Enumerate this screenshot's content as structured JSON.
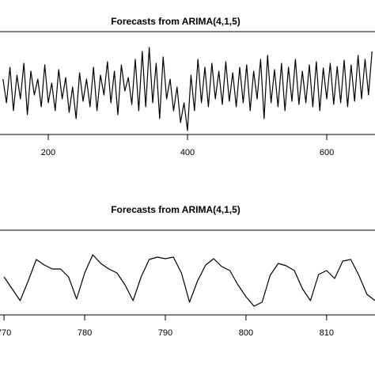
{
  "chart_data": [
    {
      "type": "line",
      "title": "Forecasts from ARIMA(4,1,5)",
      "x": [
        135,
        140,
        145,
        150,
        155,
        160,
        165,
        170,
        175,
        180,
        185,
        190,
        195,
        200,
        205,
        210,
        215,
        220,
        225,
        230,
        235,
        240,
        245,
        250,
        255,
        260,
        265,
        270,
        275,
        280,
        285,
        290,
        295,
        300,
        305,
        310,
        315,
        320,
        325,
        330,
        335,
        340,
        345,
        350,
        355,
        360,
        365,
        370,
        375,
        380,
        385,
        390,
        395,
        400,
        405,
        410,
        415,
        420,
        425,
        430,
        435,
        440,
        445,
        450,
        455,
        460,
        465,
        470,
        475,
        480,
        485,
        490,
        495,
        500,
        505,
        510,
        515,
        520,
        525,
        530,
        535,
        540,
        545,
        550,
        555,
        560,
        565,
        570,
        575,
        580,
        585,
        590,
        595,
        600,
        605,
        610,
        615,
        620,
        625,
        630,
        635,
        640,
        645,
        650,
        655,
        660,
        665
      ],
      "series": [
        {
          "color": "#000000",
          "values": [
            70,
            40,
            85,
            30,
            75,
            45,
            90,
            25,
            80,
            50,
            70,
            35,
            88,
            40,
            65,
            30,
            82,
            45,
            72,
            28,
            60,
            20,
            78,
            42,
            70,
            35,
            85,
            30,
            75,
            50,
            92,
            40,
            80,
            25,
            88,
            55,
            72,
            38,
            95,
            30,
            105,
            35,
            110,
            40,
            90,
            20,
            98,
            45,
            70,
            30,
            60,
            15,
            40,
            5,
            75,
            30,
            95,
            40,
            85,
            35,
            90,
            45,
            80,
            38,
            92,
            42,
            78,
            35,
            85,
            40,
            88,
            30,
            80,
            45,
            95,
            20,
            100,
            40,
            82,
            35,
            90,
            30,
            85,
            42,
            95,
            38,
            80,
            40,
            88,
            35,
            92,
            30,
            84,
            45,
            90,
            38,
            86,
            40,
            94,
            35,
            88,
            42,
            100,
            45,
            95,
            50,
            105
          ]
        }
      ],
      "xlim": [
        130.7,
        669.3
      ],
      "ylim": [
        0,
        130
      ],
      "xticks": [
        200,
        400,
        600
      ]
    },
    {
      "type": "line",
      "title": "Forecasts from ARIMA(4,1,5)",
      "x": [
        770,
        771,
        772,
        773,
        774,
        775,
        776,
        777,
        778,
        779,
        780,
        781,
        782,
        783,
        784,
        785,
        786,
        787,
        788,
        789,
        790,
        791,
        792,
        793,
        794,
        795,
        796,
        797,
        798,
        799,
        800,
        801,
        802,
        803,
        804,
        805,
        806,
        807,
        808,
        809,
        810,
        811,
        812,
        813,
        814,
        815,
        816
      ],
      "series": [
        {
          "color": "#000000",
          "values": [
            48,
            33,
            18,
            43,
            70,
            63,
            58,
            58,
            48,
            20,
            53,
            76,
            65,
            58,
            53,
            38,
            18,
            48,
            70,
            73,
            71,
            73,
            53,
            16,
            43,
            63,
            71,
            61,
            56,
            38,
            23,
            11,
            16,
            50,
            65,
            62,
            56,
            33,
            18,
            51,
            56,
            46,
            68,
            70,
            50,
            26,
            18
          ]
        }
      ],
      "xlim": [
        769.5,
        816
      ],
      "ylim": [
        0,
        107
      ],
      "xticks": [
        770,
        780,
        790,
        800,
        810
      ]
    }
  ]
}
